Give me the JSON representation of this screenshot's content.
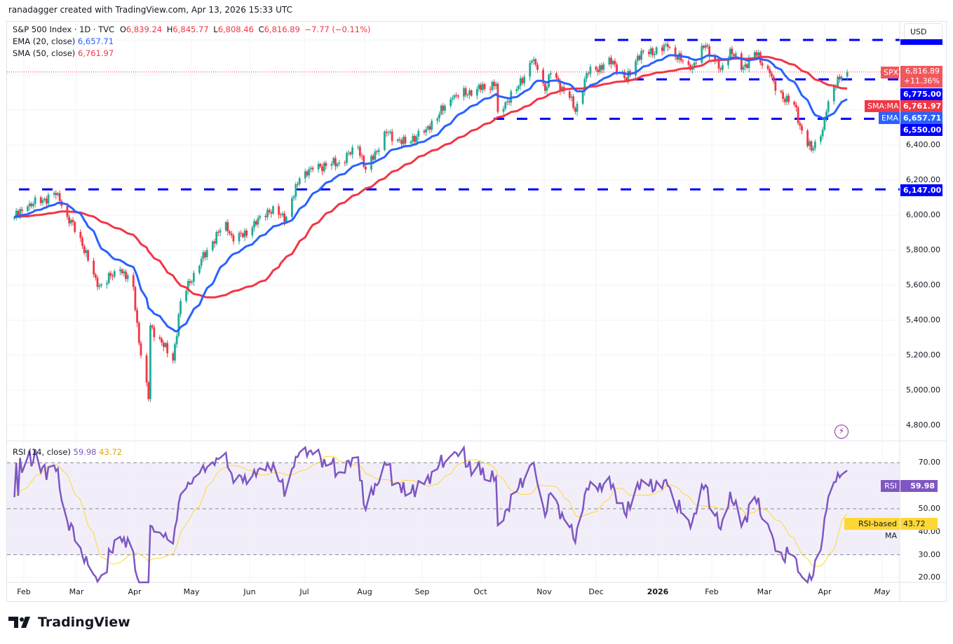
{
  "credit": "ranadagger created with TradingView.com, Apr 13, 2026 15:33 UTC",
  "header": {
    "symbol": "S&P 500 Index · 1D · TVC",
    "open_label": "O",
    "open": "6,839.24",
    "high_label": "H",
    "high": "6,845.77",
    "low_label": "L",
    "low": "6,808.46",
    "close_label": "C",
    "close": "6,816.89",
    "change": "−7.77 (−0.11%)",
    "ema_label": "EMA (20, close)",
    "ema_value": "6,657.71",
    "sma_label": "SMA (50, close)",
    "sma_value": "6,761.97"
  },
  "currency_button": "USD",
  "price_axis": {
    "ticks": [
      "6,400.00",
      "6,200.00",
      "6,000.00",
      "5,800.00",
      "5,600.00",
      "5,400.00",
      "5,200.00",
      "5,000.00",
      "4,800.00"
    ],
    "tick_values": [
      6400,
      6200,
      6000,
      5800,
      5600,
      5400,
      5200,
      5000,
      4800
    ],
    "spx_tag": "SPX",
    "last_price": "6,816.89",
    "last_change_pct": "+11.36%",
    "level_6775": "6,775.00",
    "sma_tag": "SMA:MA",
    "sma_value": "6,761.97",
    "ema_tag": "EMA",
    "ema_value": "6,657.71",
    "level_6550": "6,550.00",
    "level_6147": "6,147.00"
  },
  "rsi": {
    "label": "RSI (14, close)",
    "value": "59.98",
    "ma_value": "43.72",
    "tag": "RSI",
    "ma_tag": "RSI-based MA",
    "ticks": [
      "70.00",
      "50.00",
      "40.00",
      "30.00",
      "20.00"
    ],
    "tick_values": [
      70,
      50,
      40,
      30,
      20
    ],
    "band": [
      30,
      70
    ]
  },
  "time_axis": [
    "Feb",
    "Mar",
    "Apr",
    "May",
    "Jun",
    "Jul",
    "Aug",
    "Sep",
    "Oct",
    "Nov",
    "Dec",
    "2026",
    "Feb",
    "Mar",
    "Apr",
    "May"
  ],
  "logo_text": "TradingView",
  "colors": {
    "up": "#22ab94",
    "down": "#f23645",
    "ema": "#2962ff",
    "sma": "#f23645",
    "levels": "#0000ff",
    "rsi": "#7e57c2",
    "rsi_ma": "#fdd835"
  },
  "chart_data": {
    "type": "candlestick",
    "symbol": "SPX",
    "interval": "1D",
    "ylim": [
      4750,
      7030
    ],
    "grid": true,
    "horizontal_levels": [
      7000,
      6775,
      6550,
      6147
    ],
    "indicators": [
      "EMA 20",
      "SMA 50",
      "RSI 14",
      "RSI-based MA"
    ],
    "approx_closes": [
      [
        "2025-01-27",
        5990
      ],
      [
        "2025-02-03",
        6050
      ],
      [
        "2025-02-19",
        6125
      ],
      [
        "2025-02-24",
        5990
      ],
      [
        "2025-03-03",
        5870
      ],
      [
        "2025-03-12",
        5590
      ],
      [
        "2025-03-24",
        5690
      ],
      [
        "2025-03-31",
        5590
      ],
      [
        "2025-04-03",
        5270
      ],
      [
        "2025-04-08",
        4950
      ],
      [
        "2025-04-09",
        5370
      ],
      [
        "2025-04-21",
        5170
      ],
      [
        "2025-04-25",
        5510
      ],
      [
        "2025-05-02",
        5670
      ],
      [
        "2025-05-12",
        5850
      ],
      [
        "2025-05-19",
        5960
      ],
      [
        "2025-05-23",
        5850
      ],
      [
        "2025-06-02",
        5930
      ],
      [
        "2025-06-10",
        6030
      ],
      [
        "2025-06-20",
        5990
      ],
      [
        "2025-06-27",
        6210
      ],
      [
        "2025-07-03",
        6270
      ],
      [
        "2025-07-18",
        6300
      ],
      [
        "2025-07-28",
        6390
      ],
      [
        "2025-08-01",
        6260
      ],
      [
        "2025-08-12",
        6470
      ],
      [
        "2025-08-22",
        6410
      ],
      [
        "2025-09-02",
        6490
      ],
      [
        "2025-09-16",
        6670
      ],
      [
        "2025-09-29",
        6720
      ],
      [
        "2025-10-09",
        6750
      ],
      [
        "2025-10-10",
        6590
      ],
      [
        "2025-10-20",
        6720
      ],
      [
        "2025-10-28",
        6880
      ],
      [
        "2025-10-31",
        6830
      ],
      [
        "2025-11-04",
        6710
      ],
      [
        "2025-11-07",
        6810
      ],
      [
        "2025-11-17",
        6670
      ],
      [
        "2025-11-20",
        6590
      ],
      [
        "2025-11-26",
        6810
      ],
      [
        "2025-12-10",
        6880
      ],
      [
        "2025-12-17",
        6770
      ],
      [
        "2025-12-23",
        6910
      ],
      [
        "2026-01-08",
        6960
      ],
      [
        "2026-01-20",
        6830
      ],
      [
        "2026-01-28",
        6970
      ],
      [
        "2026-02-05",
        6830
      ],
      [
        "2026-02-10",
        6950
      ],
      [
        "2026-02-16",
        6830
      ],
      [
        "2026-02-23",
        6930
      ],
      [
        "2026-03-03",
        6810
      ],
      [
        "2026-03-06",
        6710
      ],
      [
        "2026-03-16",
        6630
      ],
      [
        "2026-03-19",
        6510
      ],
      [
        "2026-03-25",
        6370
      ],
      [
        "2026-03-30",
        6450
      ],
      [
        "2026-04-02",
        6590
      ],
      [
        "2026-04-08",
        6790
      ],
      [
        "2026-04-13",
        6817
      ]
    ]
  }
}
